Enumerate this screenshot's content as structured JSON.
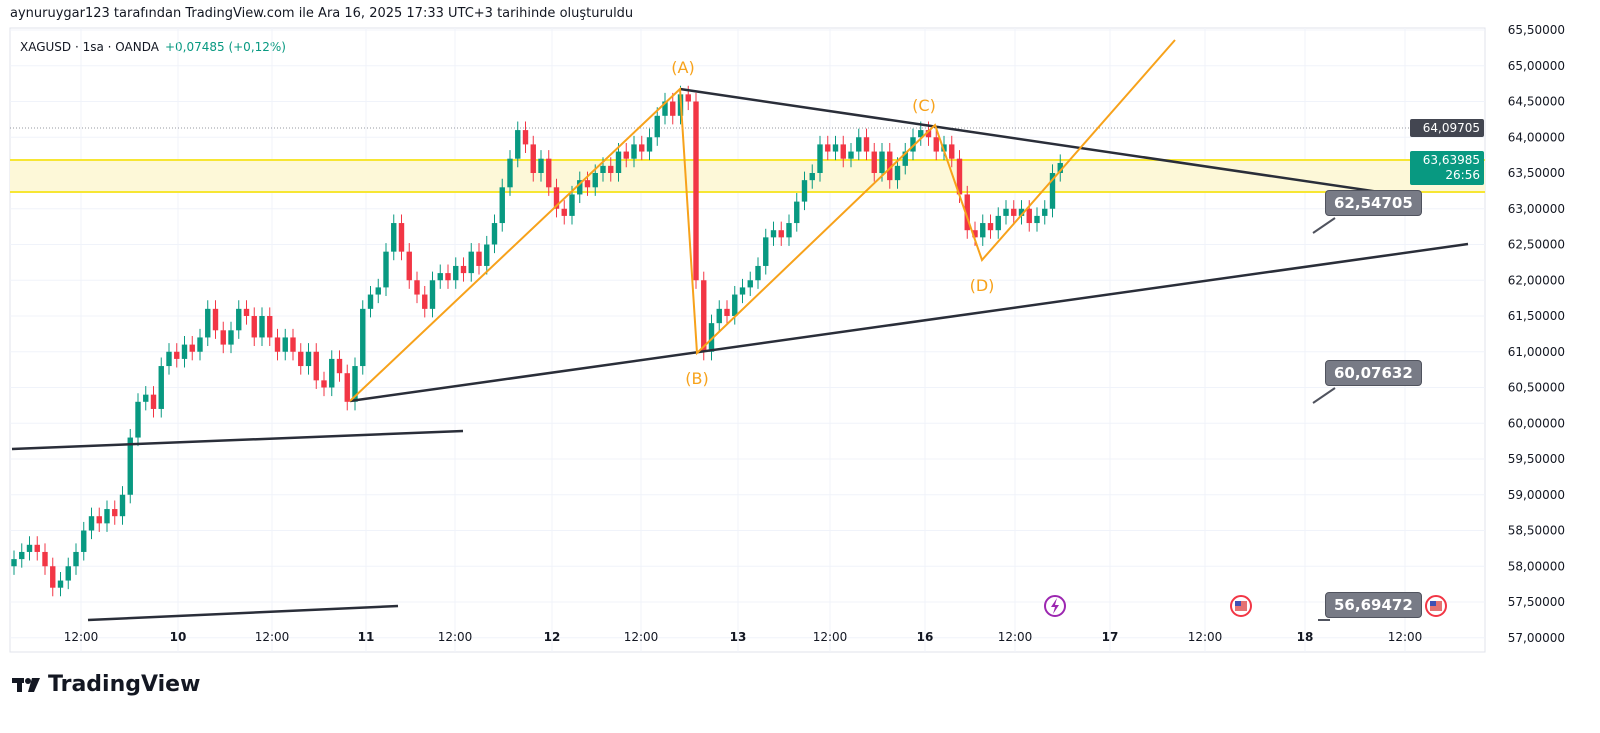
{
  "header": {
    "attribution": "aynuruygar123 tarafından TradingView.com ile Ara 16, 2025 17:33 UTC+3 tarihinde oluşturuldu",
    "symbol": "XAGUSD · 1sa · OANDA",
    "change": "+0,07485 (+0,12%)"
  },
  "chart_data": {
    "type": "candlestick",
    "symbol": "XAGUSD",
    "interval": "1sa",
    "ylim": [
      56.7,
      65.6
    ],
    "yticks": [
      "65,50000",
      "65,00000",
      "64,50000",
      "64,00000",
      "63,50000",
      "63,00000",
      "62,50000",
      "62,00000",
      "61,50000",
      "61,00000",
      "60,50000",
      "60,00000",
      "59,50000",
      "59,00000",
      "58,50000",
      "58,00000",
      "57,50000",
      "57,00000"
    ],
    "xticks": [
      "12:00",
      "10",
      "12:00",
      "11",
      "12:00",
      "12",
      "12:00",
      "13",
      "12:00",
      "16",
      "12:00",
      "17",
      "12:00",
      "18",
      "12:00"
    ],
    "closes": [
      58.1,
      58.2,
      58.3,
      58.2,
      58.0,
      57.7,
      57.8,
      58.0,
      58.2,
      58.5,
      58.7,
      58.6,
      58.8,
      58.7,
      59.0,
      59.8,
      60.3,
      60.4,
      60.2,
      60.8,
      61.0,
      60.9,
      61.1,
      61.0,
      61.2,
      61.6,
      61.3,
      61.1,
      61.3,
      61.6,
      61.5,
      61.2,
      61.5,
      61.2,
      61.0,
      61.2,
      61.0,
      60.8,
      61.0,
      60.6,
      60.5,
      60.9,
      60.7,
      60.3,
      60.8,
      61.6,
      61.8,
      61.9,
      62.4,
      62.8,
      62.4,
      62.0,
      61.8,
      61.6,
      62.0,
      62.1,
      62.0,
      62.2,
      62.1,
      62.4,
      62.2,
      62.5,
      62.8,
      63.3,
      63.7,
      64.1,
      63.9,
      63.5,
      63.7,
      63.3,
      63.0,
      62.9,
      63.2,
      63.4,
      63.3,
      63.5,
      63.6,
      63.5,
      63.8,
      63.7,
      63.9,
      63.8,
      64.0,
      64.3,
      64.5,
      64.3,
      64.6,
      64.5,
      62.0,
      61.0,
      61.4,
      61.6,
      61.5,
      61.8,
      61.9,
      62.0,
      62.2,
      62.6,
      62.7,
      62.6,
      62.8,
      63.1,
      63.4,
      63.5,
      63.9,
      63.8,
      63.9,
      63.7,
      63.8,
      64.0,
      63.8,
      63.5,
      63.8,
      63.4,
      63.6,
      63.8,
      64.0,
      64.1,
      64.0,
      63.8,
      63.9,
      63.7,
      63.2,
      62.7,
      62.6,
      62.8,
      62.7,
      62.9,
      63.0,
      62.9,
      63.0,
      62.8,
      62.9,
      63.0,
      63.5,
      63.64
    ],
    "last_price": "63,63985",
    "countdown": "26:56",
    "high_line": "64,09705",
    "wave_labels": [
      "(A)",
      "(B)",
      "(C)",
      "(D)"
    ],
    "callouts": [
      "62,54705",
      "60,07632",
      "56,69472"
    ],
    "colors": {
      "up": "#089981",
      "down": "#f23645",
      "wave": "#f7a21b",
      "trend": "#2a2e39",
      "zone": "#f7e633"
    }
  },
  "brand": "TradingView"
}
